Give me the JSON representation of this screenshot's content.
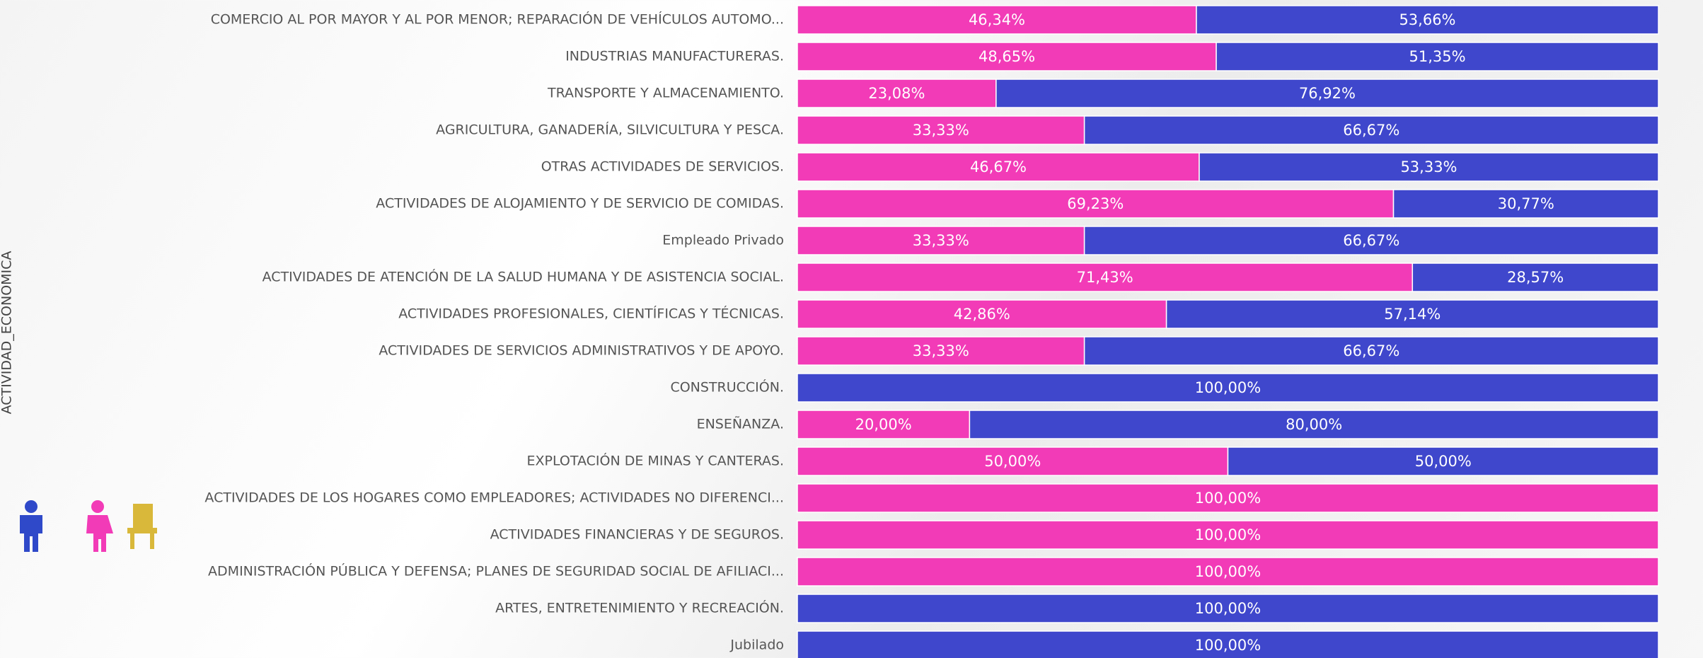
{
  "chart_data": {
    "type": "bar",
    "orientation": "horizontal",
    "stacked": true,
    "y_label": "ACTIVIDAD_ECONOMICA",
    "categories": [
      "COMERCIO AL POR MAYOR Y AL POR MENOR; REPARACIÓN DE VEHÍCULOS AUTOMO...",
      "INDUSTRIAS MANUFACTURERAS.",
      "TRANSPORTE Y ALMACENAMIENTO.",
      "AGRICULTURA, GANADERÍA, SILVICULTURA Y PESCA.",
      "OTRAS ACTIVIDADES DE SERVICIOS.",
      "ACTIVIDADES DE ALOJAMIENTO Y DE SERVICIO DE COMIDAS.",
      "Empleado Privado",
      "ACTIVIDADES DE ATENCIÓN DE LA SALUD HUMANA Y DE ASISTENCIA SOCIAL.",
      "ACTIVIDADES PROFESIONALES, CIENTÍFICAS Y TÉCNICAS.",
      "ACTIVIDADES DE SERVICIOS ADMINISTRATIVOS Y DE APOYO.",
      "CONSTRUCCIÓN.",
      "ENSEÑANZA.",
      "EXPLOTACIÓN DE MINAS Y CANTERAS.",
      "ACTIVIDADES DE LOS HOGARES COMO EMPLEADORES; ACTIVIDADES NO DIFERENCI...",
      "ACTIVIDADES FINANCIERAS Y DE SEGUROS.",
      "ADMINISTRACIÓN PÚBLICA Y DEFENSA; PLANES DE SEGURIDAD SOCIAL DE AFILIACI...",
      "ARTES, ENTRETENIMIENTO Y RECREACIÓN.",
      "Jubilado"
    ],
    "series": [
      {
        "color": "#f23bb7",
        "values": [
          46.34,
          48.65,
          23.08,
          33.33,
          46.67,
          69.23,
          33.33,
          71.43,
          42.86,
          33.33,
          null,
          20,
          50,
          100,
          100,
          100,
          null,
          null
        ],
        "value_labels": [
          "46,34%",
          "48,65%",
          "23,08%",
          "33,33%",
          "46,67%",
          "69,23%",
          "33,33%",
          "71,43%",
          "42,86%",
          "33,33%",
          null,
          "20,00%",
          "50,00%",
          "100,00%",
          "100,00%",
          "100,00%",
          null,
          null
        ]
      },
      {
        "color": "#3f47cc",
        "values": [
          53.66,
          51.35,
          76.92,
          66.67,
          53.33,
          30.77,
          66.67,
          28.57,
          57.14,
          66.67,
          100,
          80,
          50,
          null,
          null,
          null,
          100,
          100
        ],
        "value_labels": [
          "53,66%",
          "51,35%",
          "76,92%",
          "66,67%",
          "53,33%",
          "30,77%",
          "66,67%",
          "28,57%",
          "57,14%",
          "66,67%",
          "100,00%",
          "80,00%",
          "50,00%",
          null,
          null,
          null,
          "100,00%",
          "100,00%"
        ]
      }
    ],
    "xlim": [
      0,
      100
    ]
  }
}
